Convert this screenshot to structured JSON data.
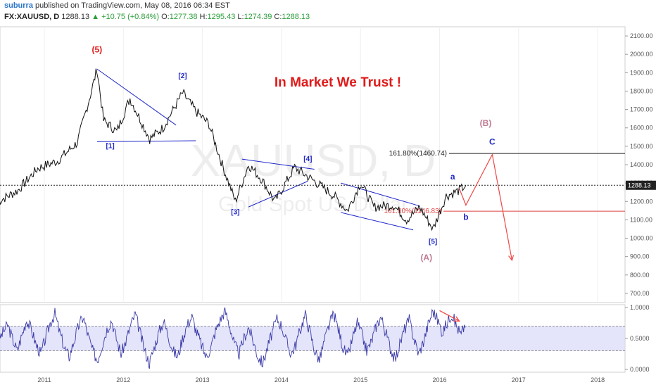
{
  "header": {
    "author": "suburra",
    "published_text": "published on TradingView.com, May 08, 2016 06:34 EST",
    "symbol": "FX:XAUUSD, D",
    "last": "1288.13",
    "change": "+10.75 (+0.84%)",
    "open_label": "O:",
    "open": "1277.38",
    "high_label": "H:",
    "high": "1295.43",
    "low_label": "L:",
    "low": "1274.39",
    "close_label": "C:",
    "close": "1288.13"
  },
  "watermark": {
    "symbol": "XAUUSD, D",
    "name": "Gold Spot US Dollar"
  },
  "headline": "In Market We Trust !",
  "colors": {
    "headline": "#e01919",
    "wave_blue": "#1f27c9",
    "fib_red": "#e04040",
    "wave_pink": "#c07a92",
    "arrow": "#f04848",
    "rsi_band": "#d8d8f8",
    "rsi_line": "#3a3aa8"
  },
  "chart_data": [
    {
      "type": "line",
      "series": [
        {
          "x": [
            "2010-06",
            "2010-09",
            "2010-12",
            "2011-03",
            "2011-06",
            "2011-08",
            "2011-09",
            "2011-10",
            "2011-12",
            "2012-02",
            "2012-05",
            "2012-07",
            "2012-10",
            "2012-12",
            "2013-02",
            "2013-04",
            "2013-06",
            "2013-08",
            "2013-10",
            "2013-12",
            "2014-03",
            "2014-06",
            "2014-09",
            "2014-11",
            "2015-01",
            "2015-03",
            "2015-06",
            "2015-08",
            "2015-10",
            "2015-12",
            "2016-02",
            "2016-04",
            "2016-05"
          ],
          "values": [
            1200,
            1260,
            1380,
            1420,
            1520,
            1780,
            1920,
            1640,
            1580,
            1760,
            1540,
            1600,
            1790,
            1690,
            1620,
            1400,
            1200,
            1400,
            1320,
            1200,
            1385,
            1310,
            1230,
            1150,
            1300,
            1170,
            1180,
            1100,
            1170,
            1050,
            1230,
            1260,
            1288
          ]
        }
      ],
      "y_ticks": [
        "700.00",
        "800.00",
        "900.00",
        "1000.00",
        "1100.00",
        "1200.00",
        "1300.00",
        "1400.00",
        "1500.00",
        "1600.00",
        "1700.00",
        "1800.00",
        "1900.00",
        "2000.00",
        "2100.00"
      ],
      "ylim": [
        650,
        2150
      ],
      "x_ticks": [
        "2011",
        "2012",
        "2013",
        "2014",
        "2015",
        "2016",
        "2017",
        "2018"
      ],
      "last_price_label": "1288.13",
      "wave_labels": [
        {
          "text": "(5)",
          "x": "2011-09",
          "y": 2010,
          "color": "#e01919"
        },
        {
          "text": "[1]",
          "x": "2011-11",
          "y": 1490,
          "color": "#1f27c9"
        },
        {
          "text": "[2]",
          "x": "2012-10",
          "y": 1870,
          "color": "#1f27c9"
        },
        {
          "text": "[3]",
          "x": "2013-06",
          "y": 1130,
          "color": "#1f27c9"
        },
        {
          "text": "[4]",
          "x": "2014-05",
          "y": 1420,
          "color": "#1f27c9"
        },
        {
          "text": "[5]",
          "x": "2015-12",
          "y": 970,
          "color": "#1f27c9"
        },
        {
          "text": "(A)",
          "x": "2015-11",
          "y": 880,
          "color": "#c07a92"
        },
        {
          "text": "a",
          "x": "2016-03",
          "y": 1320,
          "color": "#1f27c9"
        },
        {
          "text": "b",
          "x": "2016-05",
          "y": 1100,
          "color": "#1f27c9"
        },
        {
          "text": "C",
          "x": "2016-09",
          "y": 1510,
          "color": "#1f27c9"
        },
        {
          "text": "(B)",
          "x": "2016-08",
          "y": 1610,
          "color": "#c07a92"
        }
      ],
      "fib_levels": [
        {
          "label": "161.80%(1460.74)",
          "value": 1460.74,
          "color": "#222222"
        },
        {
          "label": "161.80%(1146.83)",
          "value": 1146.83,
          "color": "#e04040"
        }
      ],
      "trendlines": [
        {
          "from": [
            "2011-09",
            1920
          ],
          "to": [
            "2012-09",
            1615
          ]
        },
        {
          "from": [
            "2011-09",
            1525
          ],
          "to": [
            "2012-12",
            1530
          ]
        },
        {
          "from": [
            "2013-07",
            1430
          ],
          "to": [
            "2014-06",
            1375
          ]
        },
        {
          "from": [
            "2013-08",
            1170
          ],
          "to": [
            "2014-05",
            1310
          ]
        },
        {
          "from": [
            "2014-10",
            1300
          ],
          "to": [
            "2015-10",
            1175
          ]
        },
        {
          "from": [
            "2014-10",
            1140
          ],
          "to": [
            "2015-09",
            1045
          ]
        }
      ],
      "projection": [
        [
          "2016-04",
          1270
        ],
        [
          "2016-05",
          1180
        ],
        [
          "2016-09",
          1455
        ],
        [
          "2016-12",
          880
        ]
      ]
    },
    {
      "type": "line",
      "name": "",
      "y_ticks": [
        "0.0000",
        "0.5000",
        "1.0000"
      ],
      "ylim": [
        0,
        1
      ],
      "band": [
        0.3,
        0.7
      ],
      "values": [
        0.45,
        0.6,
        0.72,
        0.5,
        0.3,
        0.55,
        0.8,
        0.65,
        0.4,
        0.25,
        0.5,
        0.75,
        0.9,
        0.6,
        0.35,
        0.2,
        0.45,
        0.7,
        0.85,
        0.55,
        0.3,
        0.15,
        0.4,
        0.65,
        0.8,
        0.5,
        0.25,
        0.45,
        0.7,
        0.9,
        0.6,
        0.3,
        0.1,
        0.35,
        0.6,
        0.78,
        0.55,
        0.3,
        0.2,
        0.5,
        0.72,
        0.85,
        0.6,
        0.4,
        0.2,
        0.35,
        0.62,
        0.8,
        0.95,
        0.7,
        0.4,
        0.25,
        0.5,
        0.68,
        0.45,
        0.2,
        0.1,
        0.35,
        0.6,
        0.82,
        0.7,
        0.45,
        0.25,
        0.4,
        0.66,
        0.88,
        0.6,
        0.3,
        0.15,
        0.45,
        0.7,
        0.9,
        0.65,
        0.35,
        0.2,
        0.5,
        0.75,
        0.55,
        0.3,
        0.45,
        0.7,
        0.85,
        0.6,
        0.35,
        0.15,
        0.4,
        0.65,
        0.8,
        0.5,
        0.25,
        0.45,
        0.72,
        0.95,
        0.8,
        0.6,
        0.75,
        0.9,
        0.7,
        0.55,
        0.78
      ],
      "x_range": [
        "2010-06",
        "2016-05"
      ]
    }
  ]
}
